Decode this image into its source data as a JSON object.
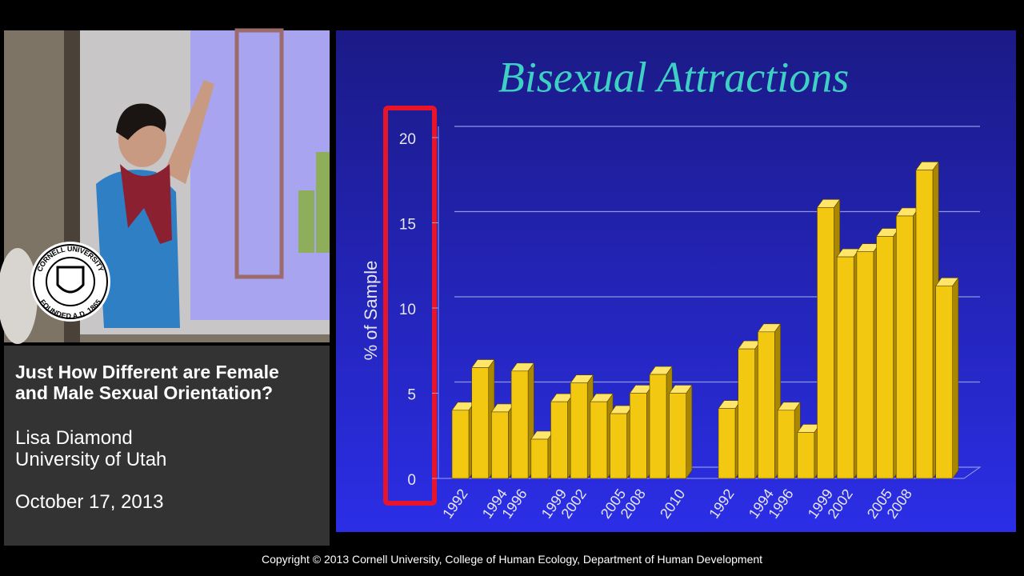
{
  "talk": {
    "title": "Just How Different are Female and Male Sexual Orientation?",
    "speaker": "Lisa Diamond",
    "affiliation": "University of Utah",
    "date": "October 17, 2013"
  },
  "seal": {
    "top": "CORNELL UNIVERSITY",
    "bottom": "FOUNDED A.D. 1865"
  },
  "copyright": "Copyright © 2013 Cornell University, College of Human Ecology, Department of Human Development",
  "chart_data": [
    {
      "type": "bar",
      "title": "Bisexual Attractions",
      "y_label": "% of Sample",
      "categories": [
        "1992",
        null,
        "1994",
        "1996",
        null,
        "1999",
        "2002",
        null,
        "2005",
        "2008",
        null,
        "2010"
      ],
      "values": [
        4.0,
        6.5,
        3.9,
        6.3,
        2.3,
        4.5,
        5.6,
        4.5,
        3.8,
        5.0,
        6.1,
        5.0
      ],
      "color": "#f2c811",
      "ylim": [
        0,
        20
      ],
      "yticks": [
        0,
        5,
        10,
        15,
        20
      ],
      "grid": true
    },
    {
      "type": "bar",
      "categories": [
        "1992",
        null,
        "1994",
        "1996",
        null,
        "1999",
        "2002",
        null,
        "2005",
        "2008",
        null,
        null
      ],
      "values": [
        4.1,
        7.6,
        8.6,
        4.0,
        2.7,
        15.9,
        13.0,
        13.3,
        14.2,
        15.4,
        18.1,
        11.3
      ],
      "color": "#f2c811",
      "ylim": [
        0,
        20
      ]
    }
  ]
}
